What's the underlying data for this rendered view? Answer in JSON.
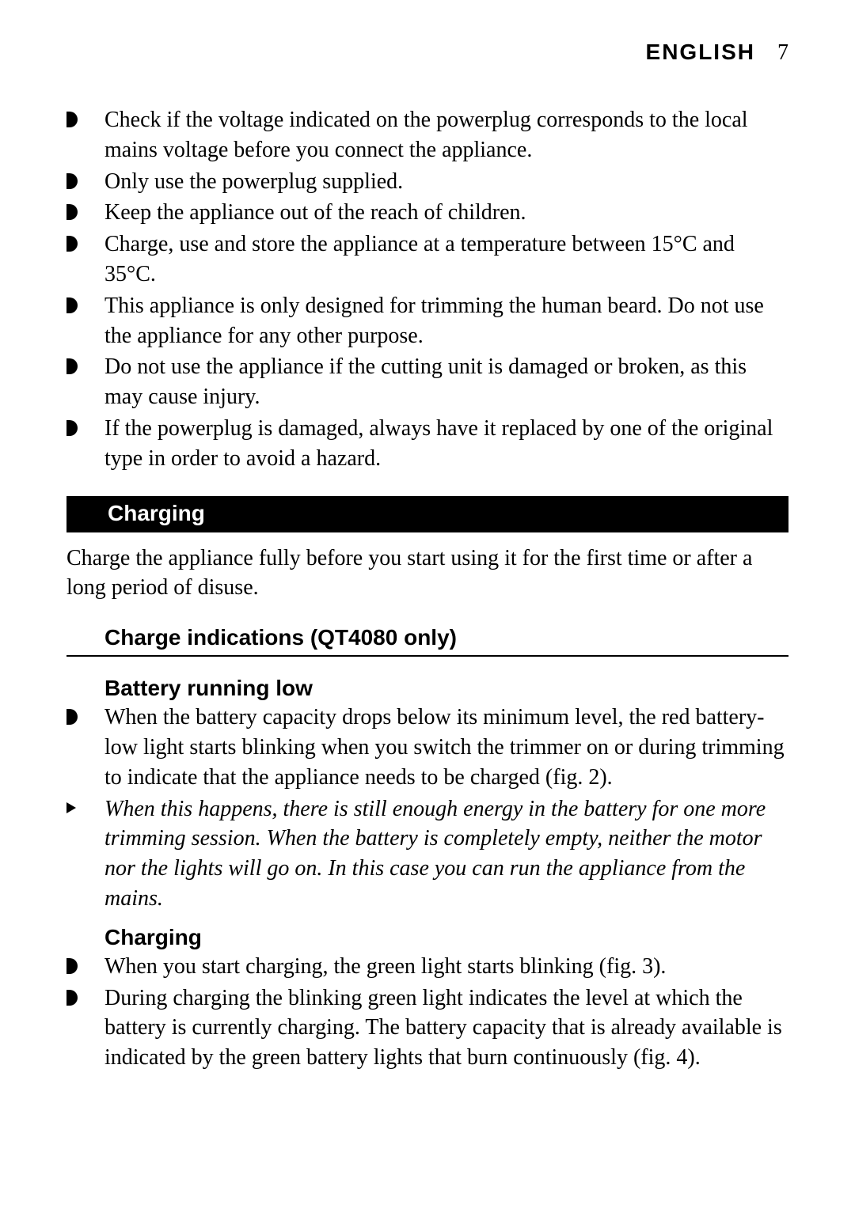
{
  "header": {
    "language": "ENGLISH",
    "page_number": "7"
  },
  "top_bullets": [
    "Check if the voltage indicated on the powerplug corresponds to the local mains voltage before you connect the appliance.",
    "Only use the powerplug supplied.",
    "Keep the appliance out of the reach of children.",
    "Charge, use and store the appliance at a temperature between 15°C and 35°C.",
    "This appliance is only designed for trimming the human beard. Do not use the appliance for any other purpose.",
    "Do not use the appliance if the cutting unit is damaged or broken, as this may cause injury.",
    "If the powerplug is damaged, always have it replaced by one of the original type in order to avoid a hazard."
  ],
  "section_charging": {
    "title": "Charging",
    "intro": "Charge the appliance fully before you start using it for the first time or after a long period of disuse."
  },
  "sub_section": {
    "title": "Charge indications (QT4080 only)"
  },
  "battery_low": {
    "title": "Battery running low",
    "bullet1": "When the battery capacity drops below its minimum level, the red battery-low light starts blinking when you switch the trimmer on or during trimming to indicate that the appliance needs to be charged (fig. 2).",
    "bullet2": "When this happens, there is still enough energy in the battery for one more trimming session. When the battery is completely empty, neither the motor nor the lights will go on. In this case you can run the appliance from the mains."
  },
  "charging_sub": {
    "title": "Charging",
    "bullet1": "When you start charging, the green light starts blinking (fig. 3).",
    "bullet2": "During charging the blinking green light indicates the level at which the battery is currently charging. The battery capacity that is already available is indicated by the green battery lights that burn continuously (fig. 4)."
  },
  "styling": {
    "body_font_size": 28,
    "header_bg": "#000000",
    "header_fg": "#ffffff",
    "page_bg": "#ffffff",
    "text_color": "#000000"
  }
}
